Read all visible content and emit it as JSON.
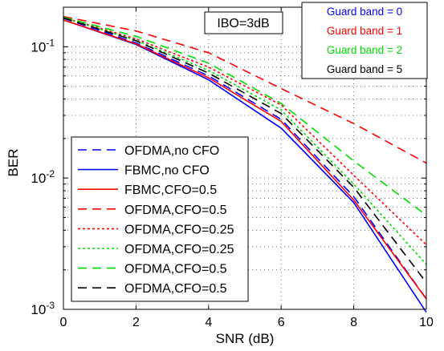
{
  "chart_data": {
    "type": "line",
    "title": "",
    "xlabel": "SNR (dB)",
    "ylabel": "BER",
    "xlim": [
      0,
      10
    ],
    "ylim": [
      0.001,
      0.2
    ],
    "yscale": "log",
    "grid": true,
    "x_ticks": [
      0,
      2,
      4,
      6,
      8,
      10
    ],
    "y_ticks": [
      {
        "value": 0.1,
        "base": "10",
        "exp": "-1"
      },
      {
        "value": 0.01,
        "base": "10",
        "exp": "-2"
      },
      {
        "value": 0.001,
        "base": "10",
        "exp": "-3"
      }
    ],
    "annotation": "IBO=3dB",
    "guard_band_labels": [
      {
        "text": "Guard band = 0",
        "color": "#0000ff"
      },
      {
        "text": "Guard band = 1",
        "color": "#ff0000"
      },
      {
        "text": "Guard band = 2",
        "color": "#00dd00"
      },
      {
        "text": "Guard band = 5",
        "color": "#000000"
      }
    ],
    "x": [
      0,
      2,
      4,
      6,
      8,
      10
    ],
    "series": [
      {
        "name": "OFDMA,no CFO",
        "color": "#0000ff",
        "dash": "dashed",
        "values": [
          0.165,
          0.107,
          0.06,
          0.028,
          0.0072,
          0.0012
        ]
      },
      {
        "name": "FBMC,no CFO",
        "color": "#0000ff",
        "dash": "solid",
        "values": [
          0.16,
          0.104,
          0.056,
          0.024,
          0.0065,
          0.00095
        ]
      },
      {
        "name": "FBMC,CFO=0.5",
        "color": "#ff0000",
        "dash": "solid",
        "values": [
          0.16,
          0.105,
          0.058,
          0.027,
          0.0068,
          0.0012
        ]
      },
      {
        "name": "OFDMA,CFO=0.5",
        "color": "#ff0000",
        "dash": "dashed",
        "values": [
          0.17,
          0.132,
          0.09,
          0.048,
          0.026,
          0.013
        ]
      },
      {
        "name": "OFDMA,CFO=0.25",
        "color": "#ff0000",
        "dash": "dotted",
        "values": [
          0.167,
          0.115,
          0.07,
          0.036,
          0.0105,
          0.0031
        ]
      },
      {
        "name": "OFDMA,CFO=0.25",
        "color": "#00dd00",
        "dash": "dotted",
        "values": [
          0.166,
          0.112,
          0.066,
          0.033,
          0.009,
          0.0022
        ]
      },
      {
        "name": "OFDMA,CFO=0.5",
        "color": "#00dd00",
        "dash": "dashed",
        "values": [
          0.168,
          0.12,
          0.075,
          0.037,
          0.0135,
          0.0052
        ]
      },
      {
        "name": "OFDMA,CFO=0.5",
        "color": "#000000",
        "dash": "dashed",
        "values": [
          0.166,
          0.111,
          0.063,
          0.031,
          0.0085,
          0.0016
        ]
      }
    ]
  }
}
